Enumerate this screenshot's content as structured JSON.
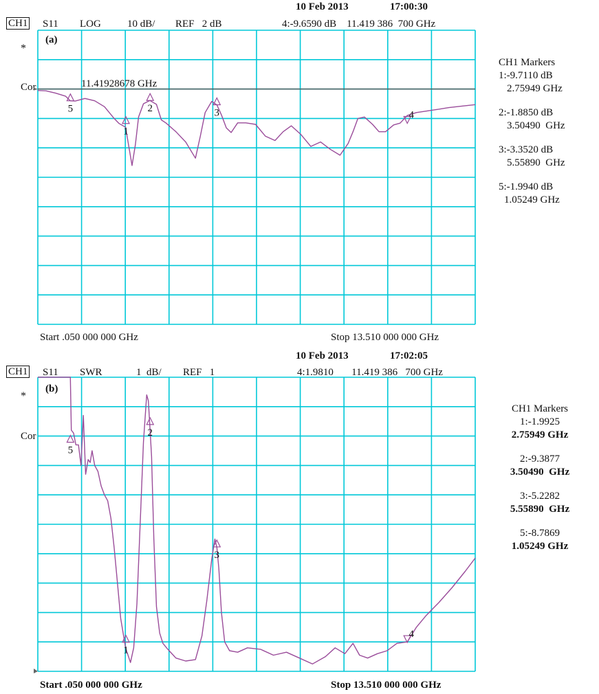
{
  "colors": {
    "grid": "#00c8d8",
    "trace": "#9a4c9a",
    "ref_line": "#555555",
    "frame": "#00c8d8"
  },
  "chart_data": [
    {
      "type": "line",
      "panel_label": "(a)",
      "header": {
        "channel": "CH1",
        "parameter": "S11",
        "format": "LOG",
        "scale": "10 dB/",
        "ref": "REF   2 dB",
        "date": "10 Feb 2013",
        "time": "17:00:30",
        "active_marker": "4:-9.6590 dB    11.419 386  700 GHz"
      },
      "side_labels": {
        "star": "*",
        "cor": "Cor"
      },
      "annotation": "11.41928678 GHz",
      "start_label": "Start .050 000 000 GHz",
      "stop_label": "Stop 13.510 000 000 GHz",
      "markers_title": "CH1 Markers",
      "markers_list": [
        {
          "value": "1:-9.7110 dB",
          "freq": "2.75949 GHz"
        },
        {
          "value": "2:-1.8850 dB",
          "freq": "3.50490  GHz"
        },
        {
          "value": "3:-3.3520 dB",
          "freq": "5.55890  GHz"
        },
        {
          "value": "5:-1.9940 dB",
          "freq": "1.05249 GHz"
        }
      ],
      "xlim": [
        0.05,
        13.51
      ],
      "ylim": [
        -78,
        22
      ],
      "ref_level": 2,
      "grid": true,
      "x": [
        0.05,
        0.3,
        0.6,
        0.9,
        1.05,
        1.2,
        1.5,
        1.8,
        2.1,
        2.4,
        2.55,
        2.75,
        2.85,
        2.95,
        3.05,
        3.15,
        3.3,
        3.5,
        3.7,
        3.85,
        4.0,
        4.3,
        4.6,
        4.9,
        5.05,
        5.2,
        5.4,
        5.56,
        5.7,
        5.85,
        6.0,
        6.2,
        6.45,
        6.75,
        7.05,
        7.35,
        7.6,
        7.85,
        8.15,
        8.45,
        8.75,
        9.05,
        9.35,
        9.6,
        9.75,
        9.9,
        10.1,
        10.35,
        10.55,
        10.75,
        11.0,
        11.2,
        11.42,
        11.7,
        12.0,
        12.3,
        12.7,
        13.1,
        13.51
      ],
      "y": [
        1.5,
        1.4,
        0.6,
        -0.4,
        -2.0,
        -2.1,
        -1.2,
        -2.0,
        -4.0,
        -8.0,
        -9.7,
        -11.0,
        -17.5,
        -24.0,
        -17.0,
        -7.5,
        -3.0,
        -1.9,
        -3.2,
        -8.5,
        -9.6,
        -12.5,
        -16.0,
        -21.5,
        -14.0,
        -6.0,
        -2.2,
        -3.4,
        -6.8,
        -11.2,
        -12.8,
        -9.5,
        -9.5,
        -10.0,
        -14.0,
        -15.5,
        -12.5,
        -10.5,
        -13.5,
        -17.5,
        -16.0,
        -18.5,
        -20.5,
        -16.5,
        -12.5,
        -8.0,
        -7.5,
        -10.0,
        -12.5,
        -12.5,
        -10.2,
        -9.6,
        -7.0,
        -6.0,
        -5.5,
        -5.0,
        -4.3,
        -3.8,
        -3.3
      ],
      "marker_points": [
        {
          "label": "1",
          "x": 2.75949,
          "y": -9.711
        },
        {
          "label": "2",
          "x": 3.5049,
          "y": -1.885
        },
        {
          "label": "3",
          "x": 5.5589,
          "y": -3.352
        },
        {
          "label": "4",
          "x": 11.419386,
          "y": -9.659
        },
        {
          "label": "5",
          "x": 1.05249,
          "y": -1.994
        }
      ]
    },
    {
      "type": "line",
      "panel_label": "(b)",
      "header": {
        "channel": "CH1",
        "parameter": "S11",
        "format": "SWR",
        "scale": "1  dB/",
        "ref": "REF   1",
        "date": "10 Feb 2013",
        "time": "17:02:05",
        "active_marker": "4:1.9810       11.419 386   700 GHz"
      },
      "side_labels": {
        "star": "*",
        "cor": "Cor"
      },
      "start_label": "Start .050 000 000 GHz",
      "stop_label": "Stop 13.510 000 000 GHz",
      "markers_title": "CH1 Markers",
      "markers_list": [
        {
          "value": "1:-1.9925",
          "freq": "2.75949 GHz"
        },
        {
          "value": "2:-9.3877",
          "freq": "3.50490  GHz"
        },
        {
          "value": "3:-5.2282",
          "freq": "5.55890  GHz"
        },
        {
          "value": "5:-8.7869",
          "freq": "1.05249 GHz"
        }
      ],
      "xlim": [
        0.05,
        13.51
      ],
      "ylim": [
        1,
        11
      ],
      "grid": true,
      "x": [
        0.05,
        0.6,
        1.05,
        1.08,
        1.15,
        1.22,
        1.3,
        1.38,
        1.45,
        1.52,
        1.6,
        1.66,
        1.72,
        1.8,
        1.9,
        2.0,
        2.1,
        2.2,
        2.3,
        2.4,
        2.5,
        2.6,
        2.75,
        2.9,
        3.0,
        3.1,
        3.2,
        3.3,
        3.4,
        3.45,
        3.5,
        3.55,
        3.62,
        3.7,
        3.8,
        3.9,
        4.05,
        4.3,
        4.6,
        4.9,
        5.1,
        5.25,
        5.4,
        5.5,
        5.56,
        5.62,
        5.7,
        5.8,
        5.95,
        6.2,
        6.5,
        6.9,
        7.3,
        7.7,
        8.1,
        8.5,
        8.9,
        9.2,
        9.5,
        9.75,
        9.95,
        10.2,
        10.5,
        10.8,
        11.1,
        11.42,
        11.7,
        12.0,
        12.4,
        12.8,
        13.2,
        13.51
      ],
      "y": [
        11.0,
        11.0,
        11.0,
        9.2,
        9.1,
        8.7,
        8.7,
        8.0,
        9.7,
        7.7,
        8.2,
        8.1,
        8.5,
        8.0,
        7.8,
        7.3,
        7.0,
        6.8,
        6.2,
        5.2,
        4.0,
        2.8,
        1.8,
        1.3,
        1.8,
        3.3,
        6.0,
        8.8,
        10.4,
        10.2,
        9.3,
        8.3,
        5.5,
        3.2,
        2.3,
        1.95,
        1.75,
        1.45,
        1.35,
        1.4,
        2.2,
        3.4,
        4.8,
        5.5,
        5.2,
        4.5,
        3.0,
        2.0,
        1.7,
        1.65,
        1.8,
        1.75,
        1.55,
        1.65,
        1.45,
        1.25,
        1.5,
        1.8,
        1.6,
        1.95,
        1.55,
        1.45,
        1.6,
        1.7,
        1.95,
        2.0,
        2.5,
        2.9,
        3.35,
        3.85,
        4.4,
        4.85
      ],
      "marker_points": [
        {
          "label": "1",
          "x": 2.75949,
          "y": 1.99
        },
        {
          "label": "2",
          "x": 3.5049,
          "y": 9.39
        },
        {
          "label": "3",
          "x": 5.5589,
          "y": 5.23
        },
        {
          "label": "4",
          "x": 11.419386,
          "y": 1.98
        },
        {
          "label": "5",
          "x": 1.05249,
          "y": 8.79
        }
      ]
    }
  ]
}
